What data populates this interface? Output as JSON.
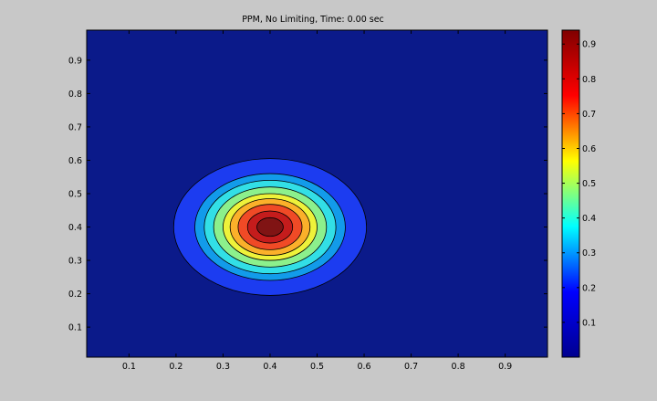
{
  "chart_data": {
    "type": "contourf",
    "title": "PPM, No Limiting, Time: 0.00 sec",
    "xlabel": "",
    "ylabel": "",
    "xlim": [
      0.01,
      0.99
    ],
    "ylim": [
      0.01,
      0.99
    ],
    "xticks": [
      0.1,
      0.2,
      0.3,
      0.4,
      0.5,
      0.6,
      0.7,
      0.8,
      0.9
    ],
    "yticks": [
      0.1,
      0.2,
      0.3,
      0.4,
      0.5,
      0.6,
      0.7,
      0.8,
      0.9
    ],
    "x_tick_labels": [
      "0.1",
      "0.2",
      "0.3",
      "0.4",
      "0.5",
      "0.6",
      "0.7",
      "0.8",
      "0.9"
    ],
    "y_tick_labels": [
      "0.1",
      "0.2",
      "0.3",
      "0.4",
      "0.5",
      "0.6",
      "0.7",
      "0.8",
      "0.9"
    ],
    "grid": false,
    "background_color": "#0b1a8a",
    "field": {
      "shape": "gaussian",
      "center": [
        0.4,
        0.4
      ],
      "peak": 0.94
    },
    "levels": [
      {
        "value": 0.1,
        "rx": 0.205,
        "ry": 0.205,
        "color": "#1c3cf0"
      },
      {
        "value": 0.2,
        "rx": 0.16,
        "ry": 0.16,
        "color": "#129bea"
      },
      {
        "value": 0.3,
        "rx": 0.14,
        "ry": 0.14,
        "color": "#32dfe6"
      },
      {
        "value": 0.4,
        "rx": 0.12,
        "ry": 0.12,
        "color": "#8cf08c"
      },
      {
        "value": 0.5,
        "rx": 0.1,
        "ry": 0.1,
        "color": "#eef23a"
      },
      {
        "value": 0.6,
        "rx": 0.085,
        "ry": 0.085,
        "color": "#fbb02a"
      },
      {
        "value": 0.7,
        "rx": 0.068,
        "ry": 0.068,
        "color": "#f04a26"
      },
      {
        "value": 0.8,
        "rx": 0.048,
        "ry": 0.048,
        "color": "#c41c1c"
      },
      {
        "value": 0.9,
        "rx": 0.028,
        "ry": 0.028,
        "color": "#801414"
      }
    ],
    "colorbar": {
      "range": [
        0.0,
        0.94
      ],
      "ticks": [
        0.1,
        0.2,
        0.3,
        0.4,
        0.5,
        0.6,
        0.7,
        0.8,
        0.9
      ],
      "tick_labels": [
        "0.1",
        "0.2",
        "0.3",
        "0.4",
        "0.5",
        "0.6",
        "0.7",
        "0.8",
        "0.9"
      ],
      "colormap": "jet",
      "colormap_stops": [
        "#00008f",
        "#0000ff",
        "#00ffff",
        "#ffff00",
        "#ff0000",
        "#800000"
      ]
    }
  }
}
